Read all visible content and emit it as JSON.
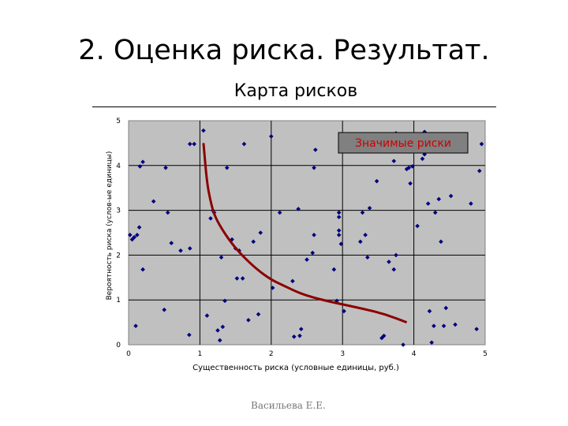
{
  "slide": {
    "title": "2. Оценка риска. Результат.",
    "subtitle": "Карта рисков",
    "author": "Васильева Е.Е."
  },
  "colors": {
    "plot_bg": "#c0c0c0",
    "grid": "#000000",
    "points": "#000080",
    "curve": "#8b0000",
    "label_bg": "#808080",
    "label_text": "#cc0000"
  },
  "chart_data": {
    "type": "scatter",
    "xlabel": "Существенность риска (условные единицы, руб.)",
    "ylabel": "Вероятность риска (услов-ые единицы)",
    "xlim": [
      0,
      5
    ],
    "ylim": [
      0,
      5
    ],
    "xticks": [
      "0",
      "1",
      "2",
      "3",
      "4",
      "5"
    ],
    "yticks": [
      "0",
      "1",
      "2",
      "3",
      "4",
      "5"
    ],
    "grid": true,
    "annotation": "Значимые риски",
    "points": [
      [
        0.02,
        2.45
      ],
      [
        0.05,
        2.35
      ],
      [
        0.08,
        2.4
      ],
      [
        0.1,
        0.42
      ],
      [
        0.12,
        2.45
      ],
      [
        0.15,
        2.62
      ],
      [
        0.16,
        3.98
      ],
      [
        0.2,
        4.08
      ],
      [
        0.2,
        1.68
      ],
      [
        0.35,
        3.2
      ],
      [
        0.5,
        0.78
      ],
      [
        0.52,
        3.95
      ],
      [
        0.55,
        2.95
      ],
      [
        0.6,
        2.27
      ],
      [
        0.73,
        2.1
      ],
      [
        0.85,
        0.22
      ],
      [
        0.86,
        2.15
      ],
      [
        0.86,
        4.48
      ],
      [
        0.92,
        4.48
      ],
      [
        1.05,
        4.78
      ],
      [
        1.1,
        0.65
      ],
      [
        1.15,
        2.82
      ],
      [
        1.18,
        3.0
      ],
      [
        1.2,
        2.95
      ],
      [
        1.25,
        0.32
      ],
      [
        1.28,
        0.1
      ],
      [
        1.3,
        1.95
      ],
      [
        1.32,
        0.4
      ],
      [
        1.35,
        0.98
      ],
      [
        1.38,
        3.95
      ],
      [
        1.45,
        2.35
      ],
      [
        1.5,
        2.15
      ],
      [
        1.52,
        1.48
      ],
      [
        1.55,
        2.1
      ],
      [
        1.6,
        1.48
      ],
      [
        1.62,
        4.48
      ],
      [
        1.68,
        0.55
      ],
      [
        1.75,
        2.3
      ],
      [
        1.82,
        0.68
      ],
      [
        1.85,
        2.5
      ],
      [
        2.0,
        4.65
      ],
      [
        2.02,
        1.27
      ],
      [
        2.12,
        2.95
      ],
      [
        2.3,
        1.42
      ],
      [
        2.32,
        0.18
      ],
      [
        2.38,
        3.03
      ],
      [
        2.4,
        0.2
      ],
      [
        2.42,
        0.35
      ],
      [
        2.5,
        1.9
      ],
      [
        2.58,
        2.05
      ],
      [
        2.6,
        3.95
      ],
      [
        2.62,
        4.35
      ],
      [
        2.6,
        2.45
      ],
      [
        2.88,
        1.68
      ],
      [
        2.92,
        0.98
      ],
      [
        2.95,
        2.95
      ],
      [
        2.95,
        2.85
      ],
      [
        2.95,
        2.55
      ],
      [
        2.95,
        2.45
      ],
      [
        2.98,
        2.25
      ],
      [
        3.02,
        0.75
      ],
      [
        3.05,
        4.48
      ],
      [
        3.25,
        2.3
      ],
      [
        3.28,
        2.95
      ],
      [
        3.32,
        2.45
      ],
      [
        3.35,
        1.95
      ],
      [
        3.38,
        3.05
      ],
      [
        3.48,
        3.65
      ],
      [
        3.55,
        0.15
      ],
      [
        3.58,
        0.2
      ],
      [
        3.65,
        1.85
      ],
      [
        3.72,
        1.68
      ],
      [
        3.72,
        4.1
      ],
      [
        3.75,
        2.0
      ],
      [
        3.75,
        4.72
      ],
      [
        3.85,
        0.0
      ],
      [
        3.9,
        3.92
      ],
      [
        3.93,
        3.95
      ],
      [
        3.98,
        3.98
      ],
      [
        3.95,
        3.6
      ],
      [
        4.05,
        2.65
      ],
      [
        4.12,
        4.15
      ],
      [
        4.15,
        4.75
      ],
      [
        4.2,
        4.48
      ],
      [
        4.15,
        4.25
      ],
      [
        4.2,
        3.15
      ],
      [
        4.22,
        0.75
      ],
      [
        4.25,
        0.05
      ],
      [
        4.28,
        0.42
      ],
      [
        4.3,
        2.95
      ],
      [
        4.35,
        3.25
      ],
      [
        4.38,
        2.3
      ],
      [
        4.42,
        0.42
      ],
      [
        4.45,
        0.82
      ],
      [
        4.52,
        3.32
      ],
      [
        4.58,
        0.45
      ],
      [
        4.8,
        3.15
      ],
      [
        4.88,
        0.35
      ],
      [
        4.92,
        3.88
      ],
      [
        4.95,
        4.48
      ]
    ],
    "curve": [
      [
        1.05,
        4.5
      ],
      [
        1.1,
        3.6
      ],
      [
        1.15,
        3.2
      ],
      [
        1.2,
        2.9
      ],
      [
        1.3,
        2.6
      ],
      [
        1.45,
        2.25
      ],
      [
        1.6,
        1.98
      ],
      [
        1.8,
        1.68
      ],
      [
        2.0,
        1.45
      ],
      [
        2.2,
        1.3
      ],
      [
        2.4,
        1.15
      ],
      [
        2.6,
        1.05
      ],
      [
        2.8,
        0.97
      ],
      [
        3.0,
        0.9
      ],
      [
        3.3,
        0.8
      ],
      [
        3.6,
        0.68
      ],
      [
        3.9,
        0.5
      ]
    ]
  }
}
